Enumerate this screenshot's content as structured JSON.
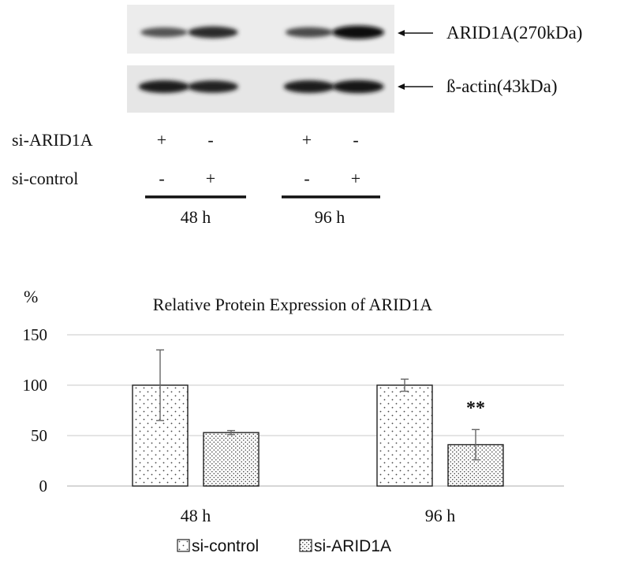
{
  "blot": {
    "bands": [
      {
        "name": "ARID1A",
        "label": "ARID1A(270kDa)",
        "intensities": [
          0.55,
          0.8,
          0.6,
          1.0
        ]
      },
      {
        "name": "b-actin",
        "label": "ß-actin(43kDa)",
        "intensities": [
          0.9,
          0.85,
          0.9,
          0.95
        ]
      }
    ],
    "rows": [
      {
        "label": "si-ARID1A",
        "marks": [
          "+",
          "-",
          "+",
          "-"
        ]
      },
      {
        "label": "si-control",
        "marks": [
          "-",
          "+",
          "-",
          "+"
        ]
      }
    ],
    "groups": [
      "48 h",
      "96 h"
    ]
  },
  "chart_data": {
    "type": "bar",
    "title": "Relative Protein Expression of ARID1A",
    "ylabel": "%",
    "xlabel": "",
    "categories": [
      "48 h",
      "96 h"
    ],
    "ylim": [
      0,
      150
    ],
    "yticks": [
      "0",
      "50",
      "100",
      "150"
    ],
    "grid": true,
    "legend": "bottom",
    "series": [
      {
        "name": "si-control",
        "values": [
          100,
          100
        ],
        "errors": [
          35,
          6
        ],
        "pattern": "sparse-dots"
      },
      {
        "name": "si-ARID1A",
        "values": [
          53,
          41
        ],
        "errors": [
          2,
          15
        ],
        "pattern": "dense-dots"
      }
    ],
    "annotations": [
      {
        "category": "96 h",
        "series": "si-ARID1A",
        "text": "**"
      }
    ]
  }
}
